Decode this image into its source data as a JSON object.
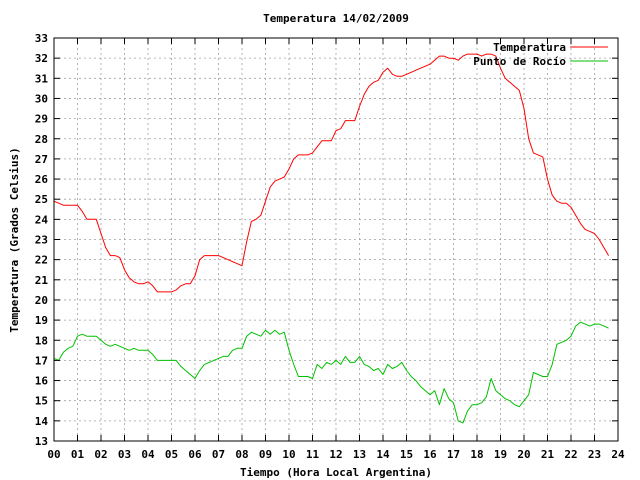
{
  "chart_data": {
    "type": "line",
    "title": "Temperatura 14/02/2009",
    "xlabel": "Tiempo (Hora Local Argentina)",
    "ylabel": "Temperatura (Grados Celsius)",
    "xlim": [
      0,
      24
    ],
    "ylim": [
      13,
      33
    ],
    "x_ticks": [
      "00",
      "01",
      "02",
      "03",
      "04",
      "05",
      "06",
      "07",
      "08",
      "09",
      "10",
      "11",
      "12",
      "13",
      "14",
      "15",
      "16",
      "17",
      "18",
      "19",
      "20",
      "21",
      "22",
      "23",
      "24"
    ],
    "y_ticks": [
      13,
      14,
      15,
      16,
      17,
      18,
      19,
      20,
      21,
      22,
      23,
      24,
      25,
      26,
      27,
      28,
      29,
      30,
      31,
      32,
      33
    ],
    "grid": true,
    "legend_position": "top-right",
    "series": [
      {
        "name": "Temperatura",
        "color": "#ff0000",
        "x": [
          0,
          0.2,
          0.4,
          0.6,
          0.8,
          1.0,
          1.2,
          1.4,
          1.6,
          1.8,
          2.0,
          2.2,
          2.4,
          2.6,
          2.8,
          3.0,
          3.2,
          3.4,
          3.6,
          3.8,
          4.0,
          4.2,
          4.4,
          4.6,
          4.8,
          5.0,
          5.2,
          5.4,
          5.6,
          5.8,
          6.0,
          6.2,
          6.4,
          6.6,
          6.8,
          7.0,
          7.2,
          7.4,
          7.6,
          7.8,
          8.0,
          8.2,
          8.4,
          8.6,
          8.8,
          9.0,
          9.2,
          9.4,
          9.6,
          9.8,
          10.0,
          10.2,
          10.4,
          10.6,
          10.8,
          11.0,
          11.2,
          11.4,
          11.6,
          11.8,
          12.0,
          12.2,
          12.4,
          12.6,
          12.8,
          13.0,
          13.2,
          13.4,
          13.6,
          13.8,
          14.0,
          14.2,
          14.4,
          14.6,
          14.8,
          15.0,
          15.2,
          15.4,
          15.6,
          15.8,
          16.0,
          16.2,
          16.4,
          16.6,
          16.8,
          17.0,
          17.2,
          17.4,
          17.6,
          17.8,
          18.0,
          18.2,
          18.4,
          18.6,
          18.8,
          19.0,
          19.2,
          19.4,
          19.6,
          19.8,
          20.0,
          20.2,
          20.4,
          20.6,
          20.8,
          21.0,
          21.2,
          21.4,
          21.6,
          21.8,
          22.0,
          22.2,
          22.4,
          22.6,
          22.8,
          23.0,
          23.2,
          23.4,
          23.6
        ],
        "values": [
          24.9,
          24.8,
          24.7,
          24.7,
          24.7,
          24.7,
          24.4,
          24.0,
          24.0,
          24.0,
          23.3,
          22.6,
          22.2,
          22.2,
          22.1,
          21.5,
          21.1,
          20.9,
          20.8,
          20.8,
          20.9,
          20.7,
          20.4,
          20.4,
          20.4,
          20.4,
          20.5,
          20.7,
          20.8,
          20.8,
          21.2,
          22.0,
          22.2,
          22.2,
          22.2,
          22.2,
          22.1,
          22.0,
          21.9,
          21.8,
          21.7,
          22.9,
          23.9,
          24.0,
          24.2,
          24.9,
          25.6,
          25.9,
          26.0,
          26.1,
          26.5,
          27.0,
          27.2,
          27.2,
          27.2,
          27.3,
          27.6,
          27.9,
          27.9,
          27.9,
          28.4,
          28.5,
          28.9,
          28.9,
          28.9,
          29.6,
          30.2,
          30.6,
          30.8,
          30.9,
          31.3,
          31.5,
          31.2,
          31.1,
          31.1,
          31.2,
          31.3,
          31.4,
          31.5,
          31.6,
          31.7,
          31.9,
          32.1,
          32.1,
          32.0,
          32.0,
          31.9,
          32.1,
          32.2,
          32.2,
          32.2,
          32.1,
          32.2,
          32.2,
          32.1,
          31.5,
          31.0,
          30.8,
          30.6,
          30.4,
          29.5,
          28.0,
          27.3,
          27.2,
          27.1,
          26.0,
          25.2,
          24.9,
          24.8,
          24.8,
          24.6,
          24.2,
          23.8,
          23.5,
          23.4,
          23.3,
          23.0,
          22.6,
          22.2
        ]
      },
      {
        "name": "Punto de Rocío",
        "color": "#00c000",
        "x": [
          0,
          0.2,
          0.4,
          0.6,
          0.8,
          1.0,
          1.2,
          1.4,
          1.6,
          1.8,
          2.0,
          2.2,
          2.4,
          2.6,
          2.8,
          3.0,
          3.2,
          3.4,
          3.6,
          3.8,
          4.0,
          4.2,
          4.4,
          4.6,
          4.8,
          5.0,
          5.2,
          5.4,
          5.6,
          5.8,
          6.0,
          6.2,
          6.4,
          6.6,
          6.8,
          7.0,
          7.2,
          7.4,
          7.6,
          7.8,
          8.0,
          8.2,
          8.4,
          8.6,
          8.8,
          9.0,
          9.2,
          9.4,
          9.6,
          9.8,
          10.0,
          10.2,
          10.4,
          10.6,
          10.8,
          11.0,
          11.2,
          11.4,
          11.6,
          11.8,
          12.0,
          12.2,
          12.4,
          12.6,
          12.8,
          13.0,
          13.2,
          13.4,
          13.6,
          13.8,
          14.0,
          14.2,
          14.4,
          14.6,
          14.8,
          15.0,
          15.2,
          15.4,
          15.6,
          15.8,
          16.0,
          16.2,
          16.4,
          16.6,
          16.8,
          17.0,
          17.2,
          17.4,
          17.6,
          17.8,
          18.0,
          18.2,
          18.4,
          18.6,
          18.8,
          19.0,
          19.2,
          19.4,
          19.6,
          19.8,
          20.0,
          20.2,
          20.4,
          20.6,
          20.8,
          21.0,
          21.2,
          21.4,
          21.6,
          21.8,
          22.0,
          22.2,
          22.4,
          22.6,
          22.8,
          23.0,
          23.2,
          23.4,
          23.6
        ],
        "values": [
          17.1,
          17.0,
          17.4,
          17.6,
          17.7,
          18.2,
          18.3,
          18.2,
          18.2,
          18.2,
          18.0,
          17.8,
          17.7,
          17.8,
          17.7,
          17.6,
          17.5,
          17.6,
          17.5,
          17.5,
          17.5,
          17.3,
          17.0,
          17.0,
          17.0,
          17.0,
          17.0,
          16.7,
          16.5,
          16.3,
          16.1,
          16.5,
          16.8,
          16.9,
          17.0,
          17.1,
          17.2,
          17.2,
          17.5,
          17.6,
          17.6,
          18.2,
          18.4,
          18.3,
          18.2,
          18.5,
          18.3,
          18.5,
          18.3,
          18.4,
          17.5,
          16.8,
          16.2,
          16.2,
          16.2,
          16.1,
          16.8,
          16.6,
          16.9,
          16.8,
          17.0,
          16.8,
          17.2,
          16.9,
          16.9,
          17.2,
          16.8,
          16.7,
          16.5,
          16.6,
          16.3,
          16.8,
          16.6,
          16.7,
          16.9,
          16.5,
          16.2,
          16.0,
          15.7,
          15.5,
          15.3,
          15.5,
          14.8,
          15.6,
          15.1,
          14.9,
          14.0,
          13.9,
          14.5,
          14.8,
          14.8,
          14.9,
          15.2,
          16.1,
          15.5,
          15.3,
          15.1,
          15.0,
          14.8,
          14.7,
          15.0,
          15.3,
          16.4,
          16.3,
          16.2,
          16.2,
          16.8,
          17.8,
          17.9,
          18.0,
          18.2,
          18.7,
          18.9,
          18.8,
          18.7,
          18.8,
          18.8,
          18.7,
          18.6
        ]
      }
    ]
  }
}
